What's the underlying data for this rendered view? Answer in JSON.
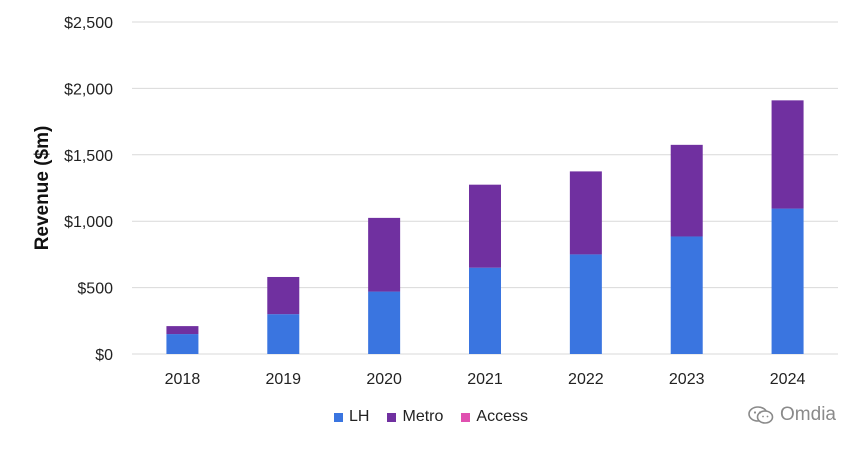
{
  "chart_data": {
    "type": "bar",
    "stacked": true,
    "categories": [
      "2018",
      "2019",
      "2020",
      "2021",
      "2022",
      "2023",
      "2024"
    ],
    "series": [
      {
        "name": "LH",
        "color": "#3a75e0",
        "values": [
          150,
          300,
          470,
          650,
          750,
          885,
          1095
        ]
      },
      {
        "name": "Metro",
        "color": "#7030a0",
        "values": [
          60,
          280,
          555,
          625,
          625,
          690,
          815
        ]
      },
      {
        "name": "Access",
        "color": "#e050b0",
        "values": [
          0,
          0,
          0,
          0,
          0,
          0,
          0
        ]
      }
    ],
    "ylabel": "Revenue ($m)",
    "ylim": [
      0,
      2500
    ],
    "yticks": [
      0,
      500,
      1000,
      1500,
      2000,
      2500
    ],
    "ytick_labels": [
      "$0",
      "$500",
      "$1,000",
      "$1,500",
      "$2,000",
      "$2,500"
    ],
    "grid": true,
    "legend_position": "bottom-center"
  },
  "watermark": {
    "text": "Omdia",
    "icon": "wechat-icon"
  }
}
